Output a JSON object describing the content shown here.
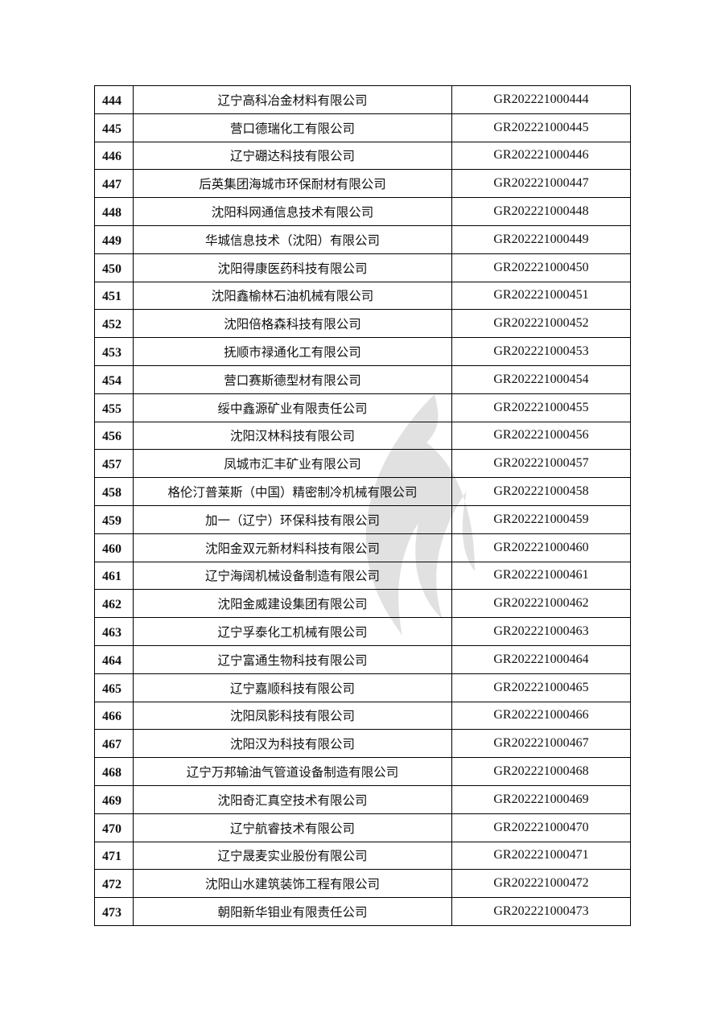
{
  "watermark": {
    "icon": "flame-logo-watermark",
    "color": "#d9d9d9"
  },
  "rows": [
    {
      "no": "444",
      "company": "辽宁高科冶金材料有限公司",
      "code": "GR202221000444"
    },
    {
      "no": "445",
      "company": "营口德瑞化工有限公司",
      "code": "GR202221000445"
    },
    {
      "no": "446",
      "company": "辽宁硼达科技有限公司",
      "code": "GR202221000446"
    },
    {
      "no": "447",
      "company": "后英集团海城市环保耐材有限公司",
      "code": "GR202221000447"
    },
    {
      "no": "448",
      "company": "沈阳科网通信息技术有限公司",
      "code": "GR202221000448"
    },
    {
      "no": "449",
      "company": "华城信息技术（沈阳）有限公司",
      "code": "GR202221000449"
    },
    {
      "no": "450",
      "company": "沈阳得康医药科技有限公司",
      "code": "GR202221000450"
    },
    {
      "no": "451",
      "company": "沈阳鑫榆林石油机械有限公司",
      "code": "GR202221000451"
    },
    {
      "no": "452",
      "company": "沈阳倍格森科技有限公司",
      "code": "GR202221000452"
    },
    {
      "no": "453",
      "company": "抚顺市禄通化工有限公司",
      "code": "GR202221000453"
    },
    {
      "no": "454",
      "company": "营口赛斯德型材有限公司",
      "code": "GR202221000454"
    },
    {
      "no": "455",
      "company": "绥中鑫源矿业有限责任公司",
      "code": "GR202221000455"
    },
    {
      "no": "456",
      "company": "沈阳汉林科技有限公司",
      "code": "GR202221000456"
    },
    {
      "no": "457",
      "company": "凤城市汇丰矿业有限公司",
      "code": "GR202221000457"
    },
    {
      "no": "458",
      "company": "格伦汀普莱斯（中国）精密制冷机械有限公司",
      "code": "GR202221000458"
    },
    {
      "no": "459",
      "company": "加一（辽宁）环保科技有限公司",
      "code": "GR202221000459"
    },
    {
      "no": "460",
      "company": "沈阳金双元新材料科技有限公司",
      "code": "GR202221000460"
    },
    {
      "no": "461",
      "company": "辽宁海阔机械设备制造有限公司",
      "code": "GR202221000461"
    },
    {
      "no": "462",
      "company": "沈阳金威建设集团有限公司",
      "code": "GR202221000462"
    },
    {
      "no": "463",
      "company": "辽宁孚泰化工机械有限公司",
      "code": "GR202221000463"
    },
    {
      "no": "464",
      "company": "辽宁富通生物科技有限公司",
      "code": "GR202221000464"
    },
    {
      "no": "465",
      "company": "辽宁嘉顺科技有限公司",
      "code": "GR202221000465"
    },
    {
      "no": "466",
      "company": "沈阳凤影科技有限公司",
      "code": "GR202221000466"
    },
    {
      "no": "467",
      "company": "沈阳汉为科技有限公司",
      "code": "GR202221000467"
    },
    {
      "no": "468",
      "company": "辽宁万邦输油气管道设备制造有限公司",
      "code": "GR202221000468"
    },
    {
      "no": "469",
      "company": "沈阳奇汇真空技术有限公司",
      "code": "GR202221000469"
    },
    {
      "no": "470",
      "company": "辽宁航睿技术有限公司",
      "code": "GR202221000470"
    },
    {
      "no": "471",
      "company": "辽宁晟麦实业股份有限公司",
      "code": "GR202221000471"
    },
    {
      "no": "472",
      "company": "沈阳山水建筑装饰工程有限公司",
      "code": "GR202221000472"
    },
    {
      "no": "473",
      "company": "朝阳新华钼业有限责任公司",
      "code": "GR202221000473"
    }
  ]
}
